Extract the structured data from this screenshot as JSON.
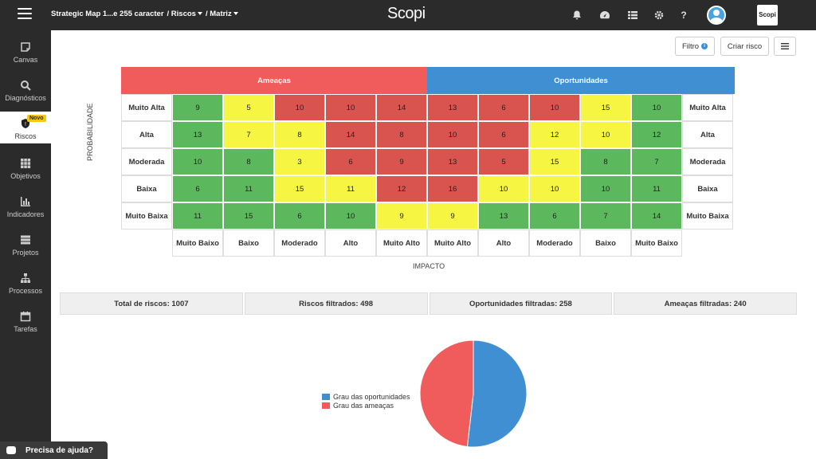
{
  "topbar": {
    "crumb1": "Strategic Map 1...e 255 caracter",
    "crumb2": "/ Riscos",
    "crumb3": "/ Matriz",
    "brand": "Scopi",
    "logo": "Scopi"
  },
  "sidebar": {
    "items": [
      {
        "label": "Canvas",
        "icon": "canvas-icon"
      },
      {
        "label": "Diagnósticos",
        "icon": "search-icon"
      },
      {
        "label": "Riscos",
        "icon": "shield-icon",
        "badge": "Novo"
      },
      {
        "label": "Objetivos",
        "icon": "grid-icon"
      },
      {
        "label": "Indicadores",
        "icon": "bar-chart-icon"
      },
      {
        "label": "Projetos",
        "icon": "projects-icon"
      },
      {
        "label": "Processos",
        "icon": "hierarchy-icon"
      },
      {
        "label": "Tarefas",
        "icon": "calendar-icon"
      }
    ]
  },
  "toolbar": {
    "filter_label": "Filtro",
    "create_label": "Criar risco"
  },
  "matrix": {
    "threats_label": "Ameaças",
    "opportunities_label": "Oportunidades",
    "threat_color": "#f05c5c",
    "opportunity_color": "#3f8fd2",
    "prob_labels": [
      "Muito Alta",
      "Alta",
      "Moderada",
      "Baixa",
      "Muito Baixa"
    ],
    "impact_labels": [
      "Muito Baixo",
      "Baixo",
      "Moderado",
      "Alto",
      "Muito Alto",
      "Muito Alto",
      "Alto",
      "Moderado",
      "Baixo",
      "Muito Baixo"
    ],
    "prob_axis": "PROBABILIDADE",
    "impact_axis": "IMPACTO",
    "rows": [
      {
        "values": [
          "9",
          "5",
          "10",
          "10",
          "14",
          "13",
          "6",
          "10",
          "15",
          "10"
        ],
        "colors": [
          "g",
          "y",
          "r",
          "r",
          "r",
          "r",
          "r",
          "r",
          "y",
          "g"
        ]
      },
      {
        "values": [
          "13",
          "7",
          "8",
          "14",
          "8",
          "10",
          "6",
          "12",
          "10",
          "12"
        ],
        "colors": [
          "g",
          "y",
          "y",
          "r",
          "r",
          "r",
          "r",
          "y",
          "y",
          "g"
        ]
      },
      {
        "values": [
          "10",
          "8",
          "3",
          "6",
          "9",
          "13",
          "5",
          "15",
          "8",
          "7"
        ],
        "colors": [
          "g",
          "g",
          "y",
          "r",
          "r",
          "r",
          "r",
          "y",
          "g",
          "g"
        ]
      },
      {
        "values": [
          "6",
          "11",
          "15",
          "11",
          "12",
          "16",
          "10",
          "10",
          "10",
          "11"
        ],
        "colors": [
          "g",
          "g",
          "y",
          "y",
          "r",
          "r",
          "y",
          "y",
          "g",
          "g"
        ]
      },
      {
        "values": [
          "11",
          "15",
          "6",
          "10",
          "9",
          "9",
          "13",
          "6",
          "7",
          "14"
        ],
        "colors": [
          "g",
          "g",
          "g",
          "g",
          "y",
          "y",
          "g",
          "g",
          "g",
          "g"
        ]
      }
    ]
  },
  "summary": {
    "total": "Total de riscos: 1007",
    "filtered": "Riscos filtrados: 498",
    "opportunities": "Oportunidades filtradas: 258",
    "threats": "Ameaças filtradas: 240"
  },
  "chart_data": {
    "type": "pie",
    "series": [
      {
        "name": "Grau das oportunidades",
        "value": 258,
        "color": "#3f8fd2"
      },
      {
        "name": "Grau das ameaças",
        "value": 240,
        "color": "#f05c5c"
      }
    ]
  },
  "help": {
    "label": "Precisa de ajuda?"
  }
}
